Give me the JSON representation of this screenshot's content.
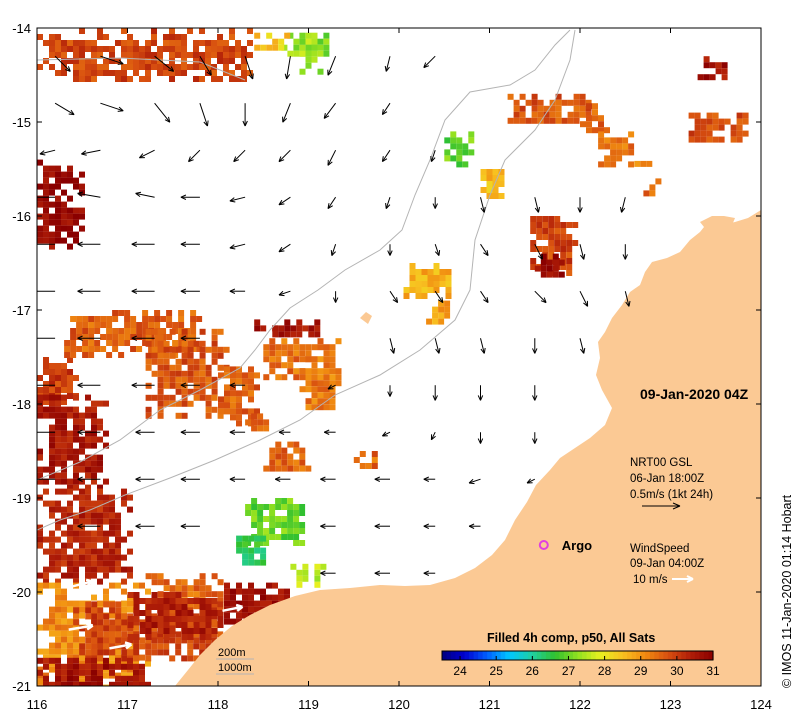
{
  "map": {
    "lon_range": [
      116,
      124
    ],
    "lat_range": [
      -21,
      -14
    ],
    "x_ticks": [
      {
        "value": 116,
        "label": "116"
      },
      {
        "value": 117,
        "label": "117"
      },
      {
        "value": 118,
        "label": "118"
      },
      {
        "value": 119,
        "label": "119"
      },
      {
        "value": 120,
        "label": "120"
      },
      {
        "value": 121,
        "label": "121"
      },
      {
        "value": 122,
        "label": "122"
      },
      {
        "value": 123,
        "label": "123"
      },
      {
        "value": 124,
        "label": "124"
      }
    ],
    "y_ticks": [
      {
        "value": -14,
        "label": "-14"
      },
      {
        "value": -15,
        "label": "-15"
      },
      {
        "value": -16,
        "label": "-16"
      },
      {
        "value": -17,
        "label": "-17"
      },
      {
        "value": -18,
        "label": "-18"
      },
      {
        "value": -19,
        "label": "-19"
      },
      {
        "value": -20,
        "label": "-20"
      },
      {
        "value": -21,
        "label": "-21"
      }
    ],
    "date_label": "09-Jan-2020 04Z",
    "currents_note": {
      "line1": "NRT00 GSL",
      "line2": "06-Jan 18:00Z",
      "line3": "0.5m/s (1kt 24h)"
    },
    "wind_note": {
      "line1": "WindSpeed",
      "line2": "09-Jan 04:00Z",
      "line3": "10 m/s"
    },
    "argo": {
      "label": "Argo",
      "lon": 121.6,
      "lat": -19.5,
      "color": "#e040e0"
    },
    "depth_legend": {
      "line1": "200m",
      "line2": "1000m"
    },
    "credit": "© IMOS 11-Jan-2020 01:14 Hobart",
    "land_color": "#fbc994",
    "contour_color": "#b4b4b4",
    "current_arrow_color": "#000000",
    "wind_arrow_color": "#ffffff"
  },
  "colorbar": {
    "title": "Filled 4h comp, p50, All Sats",
    "min": 23.5,
    "max": 31,
    "ticks": [
      {
        "value": 24,
        "label": "24"
      },
      {
        "value": 25,
        "label": "25"
      },
      {
        "value": 26,
        "label": "26"
      },
      {
        "value": 27,
        "label": "27"
      },
      {
        "value": 28,
        "label": "28"
      },
      {
        "value": 29,
        "label": "29"
      },
      {
        "value": 30,
        "label": "30"
      },
      {
        "value": 31,
        "label": "31"
      }
    ],
    "stops": [
      "#00007f",
      "#0000d0",
      "#0060ff",
      "#00c8ff",
      "#20d0a0",
      "#30c030",
      "#90e020",
      "#e8f020",
      "#f8c020",
      "#f08a10",
      "#d85010",
      "#b01e08",
      "#8a0000"
    ]
  },
  "sst_patches": [
    {
      "lon": 116.0,
      "lat": -14.0,
      "w": 2.35,
      "h": 0.55,
      "t": 29.9
    },
    {
      "lon": 116.0,
      "lat": -15.4,
      "w": 0.5,
      "h": 0.95,
      "t": 30.8
    },
    {
      "lon": 116.0,
      "lat": -17.5,
      "w": 0.45,
      "h": 0.5,
      "t": 30.0
    },
    {
      "lon": 116.0,
      "lat": -17.9,
      "w": 0.75,
      "h": 1.0,
      "t": 30.5
    },
    {
      "lon": 116.3,
      "lat": -17.0,
      "w": 1.5,
      "h": 0.5,
      "t": 29.6
    },
    {
      "lon": 117.2,
      "lat": -17.2,
      "w": 0.9,
      "h": 0.9,
      "t": 29.7
    },
    {
      "lon": 118.4,
      "lat": -17.1,
      "w": 0.25,
      "h": 0.12,
      "t": 30.7
    },
    {
      "lon": 118.6,
      "lat": -17.1,
      "w": 0.5,
      "h": 0.15,
      "t": 30.6
    },
    {
      "lon": 118.5,
      "lat": -17.3,
      "w": 0.5,
      "h": 0.4,
      "t": 29.4
    },
    {
      "lon": 118.9,
      "lat": -17.3,
      "w": 0.4,
      "h": 0.75,
      "t": 29.3
    },
    {
      "lon": 118.0,
      "lat": -17.6,
      "w": 0.4,
      "h": 0.6,
      "t": 29.6
    },
    {
      "lon": 118.5,
      "lat": -18.4,
      "w": 0.5,
      "h": 0.3,
      "t": 29.5
    },
    {
      "lon": 116.0,
      "lat": -18.9,
      "w": 1.0,
      "h": 1.0,
      "t": 30.3
    },
    {
      "lon": 116.0,
      "lat": -19.9,
      "w": 1.2,
      "h": 1.1,
      "t": 29.1
    },
    {
      "lon": 117.2,
      "lat": -19.8,
      "w": 0.8,
      "h": 0.7,
      "t": 29.5
    },
    {
      "lon": 116.4,
      "lat": -20.1,
      "w": 1.6,
      "h": 0.6,
      "t": 29.9
    },
    {
      "lon": 117.0,
      "lat": -20.0,
      "w": 1.0,
      "h": 0.5,
      "t": 30.4
    },
    {
      "lon": 118.0,
      "lat": -19.9,
      "w": 0.75,
      "h": 0.45,
      "t": 30.7
    },
    {
      "lon": 116.0,
      "lat": -20.7,
      "w": 1.2,
      "h": 0.3,
      "t": 30.6
    },
    {
      "lon": 118.3,
      "lat": -19.0,
      "w": 0.6,
      "h": 0.5,
      "t": 27.0
    },
    {
      "lon": 118.2,
      "lat": -19.4,
      "w": 0.3,
      "h": 0.3,
      "t": 26.5
    },
    {
      "lon": 118.8,
      "lat": -19.7,
      "w": 0.35,
      "h": 0.2,
      "t": 27.6
    },
    {
      "lon": 118.7,
      "lat": -14.05,
      "w": 0.5,
      "h": 0.25,
      "t": 27.2
    },
    {
      "lon": 118.9,
      "lat": -14.05,
      "w": 0.2,
      "h": 0.4,
      "t": 27.4
    },
    {
      "lon": 118.4,
      "lat": -14.05,
      "w": 0.35,
      "h": 0.15,
      "t": 28.4
    },
    {
      "lon": 120.5,
      "lat": -15.1,
      "w": 0.3,
      "h": 0.35,
      "t": 27.0
    },
    {
      "lon": 120.9,
      "lat": -15.5,
      "w": 0.25,
      "h": 0.3,
      "t": 28.6
    },
    {
      "lon": 120.05,
      "lat": -16.5,
      "w": 0.5,
      "h": 0.35,
      "t": 28.7
    },
    {
      "lon": 120.3,
      "lat": -16.9,
      "w": 0.25,
      "h": 0.2,
      "t": 28.9
    },
    {
      "lon": 121.2,
      "lat": -14.7,
      "w": 0.9,
      "h": 0.3,
      "t": 29.7
    },
    {
      "lon": 122.0,
      "lat": -14.8,
      "w": 0.3,
      "h": 0.3,
      "t": 29.6
    },
    {
      "lon": 122.2,
      "lat": -15.1,
      "w": 0.35,
      "h": 0.35,
      "t": 29.4
    },
    {
      "lon": 123.2,
      "lat": -14.9,
      "w": 0.6,
      "h": 0.3,
      "t": 29.8
    },
    {
      "lon": 123.3,
      "lat": -14.3,
      "w": 0.3,
      "h": 0.2,
      "t": 30.6
    },
    {
      "lon": 121.45,
      "lat": -16.0,
      "w": 0.5,
      "h": 0.6,
      "t": 29.9
    },
    {
      "lon": 121.5,
      "lat": -16.4,
      "w": 0.3,
      "h": 0.25,
      "t": 30.8
    },
    {
      "lon": 122.7,
      "lat": -15.6,
      "w": 0.15,
      "h": 0.15,
      "t": 29.6
    },
    {
      "lon": 122.6,
      "lat": -15.35,
      "w": 0.15,
      "h": 0.12,
      "t": 29.0
    },
    {
      "lon": 119.5,
      "lat": -18.5,
      "w": 0.25,
      "h": 0.2,
      "t": 29.5
    },
    {
      "lon": 118.3,
      "lat": -18.1,
      "w": 0.2,
      "h": 0.15,
      "t": 29.6
    }
  ],
  "currents": [
    {
      "lon": 116.2,
      "lat": -14.3,
      "u": 0.4,
      "v": -0.4
    },
    {
      "lon": 116.7,
      "lat": -14.3,
      "u": 0.6,
      "v": -0.2
    },
    {
      "lon": 117.3,
      "lat": -14.3,
      "u": 0.5,
      "v": -0.4
    },
    {
      "lon": 117.8,
      "lat": -14.3,
      "u": 0.3,
      "v": -0.5
    },
    {
      "lon": 118.3,
      "lat": -14.3,
      "u": 0.2,
      "v": -0.6
    },
    {
      "lon": 118.8,
      "lat": -14.3,
      "u": -0.1,
      "v": -0.6
    },
    {
      "lon": 119.3,
      "lat": -14.3,
      "u": -0.2,
      "v": -0.5
    },
    {
      "lon": 119.9,
      "lat": -14.3,
      "u": -0.1,
      "v": -0.4
    },
    {
      "lon": 120.4,
      "lat": -14.3,
      "u": -0.3,
      "v": -0.3
    },
    {
      "lon": 116.2,
      "lat": -14.8,
      "u": 0.5,
      "v": -0.3
    },
    {
      "lon": 116.7,
      "lat": -14.8,
      "u": 0.6,
      "v": -0.2
    },
    {
      "lon": 117.3,
      "lat": -14.8,
      "u": 0.4,
      "v": -0.5
    },
    {
      "lon": 117.8,
      "lat": -14.8,
      "u": 0.2,
      "v": -0.6
    },
    {
      "lon": 118.3,
      "lat": -14.8,
      "u": 0.0,
      "v": -0.6
    },
    {
      "lon": 118.8,
      "lat": -14.8,
      "u": -0.2,
      "v": -0.5
    },
    {
      "lon": 119.3,
      "lat": -14.8,
      "u": -0.3,
      "v": -0.4
    },
    {
      "lon": 119.9,
      "lat": -14.8,
      "u": -0.2,
      "v": -0.3
    },
    {
      "lon": 116.2,
      "lat": -15.3,
      "u": -0.4,
      "v": -0.1
    },
    {
      "lon": 116.7,
      "lat": -15.3,
      "u": -0.5,
      "v": -0.1
    },
    {
      "lon": 117.3,
      "lat": -15.3,
      "u": -0.4,
      "v": -0.2
    },
    {
      "lon": 117.8,
      "lat": -15.3,
      "u": -0.3,
      "v": -0.3
    },
    {
      "lon": 118.3,
      "lat": -15.3,
      "u": -0.3,
      "v": -0.3
    },
    {
      "lon": 118.8,
      "lat": -15.3,
      "u": -0.3,
      "v": -0.3
    },
    {
      "lon": 119.3,
      "lat": -15.3,
      "u": -0.2,
      "v": -0.4
    },
    {
      "lon": 119.9,
      "lat": -15.3,
      "u": -0.2,
      "v": -0.3
    },
    {
      "lon": 120.4,
      "lat": -15.3,
      "u": -0.1,
      "v": -0.3
    },
    {
      "lon": 116.2,
      "lat": -15.8,
      "u": -0.6,
      "v": 0.0
    },
    {
      "lon": 116.7,
      "lat": -15.8,
      "u": -0.6,
      "v": 0.1
    },
    {
      "lon": 117.3,
      "lat": -15.8,
      "u": -0.5,
      "v": 0.1
    },
    {
      "lon": 117.8,
      "lat": -15.8,
      "u": -0.5,
      "v": 0.0
    },
    {
      "lon": 118.3,
      "lat": -15.8,
      "u": -0.4,
      "v": -0.1
    },
    {
      "lon": 118.8,
      "lat": -15.8,
      "u": -0.3,
      "v": -0.2
    },
    {
      "lon": 119.3,
      "lat": -15.8,
      "u": -0.2,
      "v": -0.3
    },
    {
      "lon": 119.9,
      "lat": -15.8,
      "u": -0.1,
      "v": -0.3
    },
    {
      "lon": 120.4,
      "lat": -15.8,
      "u": 0.0,
      "v": -0.3
    },
    {
      "lon": 120.9,
      "lat": -15.8,
      "u": 0.1,
      "v": -0.4
    },
    {
      "lon": 121.5,
      "lat": -15.8,
      "u": 0.1,
      "v": -0.4
    },
    {
      "lon": 122.0,
      "lat": -15.8,
      "u": 0.0,
      "v": -0.4
    },
    {
      "lon": 122.5,
      "lat": -15.8,
      "u": -0.1,
      "v": -0.4
    },
    {
      "lon": 116.2,
      "lat": -16.3,
      "u": -0.6,
      "v": 0.0
    },
    {
      "lon": 116.7,
      "lat": -16.3,
      "u": -0.6,
      "v": 0.0
    },
    {
      "lon": 117.3,
      "lat": -16.3,
      "u": -0.6,
      "v": 0.0
    },
    {
      "lon": 117.8,
      "lat": -16.3,
      "u": -0.5,
      "v": 0.0
    },
    {
      "lon": 118.3,
      "lat": -16.3,
      "u": -0.4,
      "v": -0.1
    },
    {
      "lon": 118.8,
      "lat": -16.3,
      "u": -0.3,
      "v": -0.2
    },
    {
      "lon": 119.3,
      "lat": -16.3,
      "u": -0.1,
      "v": -0.3
    },
    {
      "lon": 119.9,
      "lat": -16.3,
      "u": 0.0,
      "v": -0.3
    },
    {
      "lon": 120.4,
      "lat": -16.3,
      "u": 0.1,
      "v": -0.3
    },
    {
      "lon": 120.9,
      "lat": -16.3,
      "u": 0.2,
      "v": -0.3
    },
    {
      "lon": 121.5,
      "lat": -16.3,
      "u": 0.2,
      "v": -0.4
    },
    {
      "lon": 122.0,
      "lat": -16.3,
      "u": 0.1,
      "v": -0.4
    },
    {
      "lon": 122.5,
      "lat": -16.3,
      "u": 0.0,
      "v": -0.4
    },
    {
      "lon": 116.2,
      "lat": -16.8,
      "u": -0.6,
      "v": 0.0
    },
    {
      "lon": 116.7,
      "lat": -16.8,
      "u": -0.6,
      "v": 0.0
    },
    {
      "lon": 117.3,
      "lat": -16.8,
      "u": -0.6,
      "v": 0.0
    },
    {
      "lon": 117.8,
      "lat": -16.8,
      "u": -0.5,
      "v": 0.0
    },
    {
      "lon": 118.3,
      "lat": -16.8,
      "u": -0.4,
      "v": 0.0
    },
    {
      "lon": 118.8,
      "lat": -16.8,
      "u": -0.3,
      "v": -0.1
    },
    {
      "lon": 119.3,
      "lat": -16.8,
      "u": 0.0,
      "v": -0.3
    },
    {
      "lon": 119.9,
      "lat": -16.8,
      "u": 0.2,
      "v": -0.3
    },
    {
      "lon": 120.4,
      "lat": -16.8,
      "u": 0.2,
      "v": -0.3
    },
    {
      "lon": 120.9,
      "lat": -16.8,
      "u": 0.2,
      "v": -0.3
    },
    {
      "lon": 121.5,
      "lat": -16.8,
      "u": 0.3,
      "v": -0.3
    },
    {
      "lon": 122.0,
      "lat": -16.8,
      "u": 0.2,
      "v": -0.4
    },
    {
      "lon": 122.5,
      "lat": -16.8,
      "u": 0.1,
      "v": -0.4
    },
    {
      "lon": 116.2,
      "lat": -17.3,
      "u": -0.6,
      "v": 0.0
    },
    {
      "lon": 116.7,
      "lat": -17.3,
      "u": -0.6,
      "v": 0.0
    },
    {
      "lon": 117.3,
      "lat": -17.3,
      "u": -0.6,
      "v": 0.0
    },
    {
      "lon": 117.8,
      "lat": -17.3,
      "u": -0.5,
      "v": 0.0
    },
    {
      "lon": 119.9,
      "lat": -17.3,
      "u": 0.1,
      "v": -0.4
    },
    {
      "lon": 120.4,
      "lat": -17.3,
      "u": 0.1,
      "v": -0.4
    },
    {
      "lon": 120.9,
      "lat": -17.3,
      "u": 0.1,
      "v": -0.4
    },
    {
      "lon": 121.5,
      "lat": -17.3,
      "u": 0.0,
      "v": -0.4
    },
    {
      "lon": 122.0,
      "lat": -17.3,
      "u": 0.1,
      "v": -0.4
    },
    {
      "lon": 116.2,
      "lat": -17.8,
      "u": -0.6,
      "v": 0.0
    },
    {
      "lon": 116.7,
      "lat": -17.8,
      "u": -0.6,
      "v": 0.0
    },
    {
      "lon": 117.3,
      "lat": -17.8,
      "u": -0.6,
      "v": 0.0
    },
    {
      "lon": 117.8,
      "lat": -17.8,
      "u": -0.5,
      "v": 0.0
    },
    {
      "lon": 118.3,
      "lat": -17.8,
      "u": -0.4,
      "v": 0.0
    },
    {
      "lon": 119.3,
      "lat": -17.8,
      "u": -0.2,
      "v": -0.1
    },
    {
      "lon": 119.9,
      "lat": -17.8,
      "u": 0.0,
      "v": -0.3
    },
    {
      "lon": 120.4,
      "lat": -17.8,
      "u": 0.0,
      "v": -0.4
    },
    {
      "lon": 120.9,
      "lat": -17.8,
      "u": 0.0,
      "v": -0.4
    },
    {
      "lon": 121.5,
      "lat": -17.8,
      "u": 0.0,
      "v": -0.4
    },
    {
      "lon": 116.2,
      "lat": -18.3,
      "u": -0.6,
      "v": 0.0
    },
    {
      "lon": 116.7,
      "lat": -18.3,
      "u": -0.6,
      "v": 0.0
    },
    {
      "lon": 117.3,
      "lat": -18.3,
      "u": -0.5,
      "v": 0.0
    },
    {
      "lon": 117.8,
      "lat": -18.3,
      "u": -0.5,
      "v": 0.0
    },
    {
      "lon": 118.3,
      "lat": -18.3,
      "u": -0.4,
      "v": 0.0
    },
    {
      "lon": 118.8,
      "lat": -18.3,
      "u": -0.3,
      "v": 0.0
    },
    {
      "lon": 119.3,
      "lat": -18.3,
      "u": -0.3,
      "v": 0.0
    },
    {
      "lon": 119.9,
      "lat": -18.3,
      "u": -0.2,
      "v": -0.1
    },
    {
      "lon": 120.4,
      "lat": -18.3,
      "u": -0.1,
      "v": -0.2
    },
    {
      "lon": 120.9,
      "lat": -18.3,
      "u": 0.0,
      "v": -0.3
    },
    {
      "lon": 121.5,
      "lat": -18.3,
      "u": 0.0,
      "v": -0.3
    },
    {
      "lon": 116.2,
      "lat": -18.8,
      "u": -0.6,
      "v": 0.0
    },
    {
      "lon": 116.7,
      "lat": -18.8,
      "u": -0.6,
      "v": 0.0
    },
    {
      "lon": 117.3,
      "lat": -18.8,
      "u": -0.5,
      "v": 0.0
    },
    {
      "lon": 117.8,
      "lat": -18.8,
      "u": -0.5,
      "v": 0.0
    },
    {
      "lon": 118.3,
      "lat": -18.8,
      "u": -0.4,
      "v": 0.0
    },
    {
      "lon": 118.8,
      "lat": -18.8,
      "u": -0.4,
      "v": 0.0
    },
    {
      "lon": 119.3,
      "lat": -18.8,
      "u": -0.4,
      "v": 0.0
    },
    {
      "lon": 119.9,
      "lat": -18.8,
      "u": -0.4,
      "v": 0.0
    },
    {
      "lon": 120.4,
      "lat": -18.8,
      "u": -0.3,
      "v": 0.0
    },
    {
      "lon": 120.9,
      "lat": -18.8,
      "u": -0.3,
      "v": -0.1
    },
    {
      "lon": 121.5,
      "lat": -18.8,
      "u": -0.2,
      "v": -0.1
    },
    {
      "lon": 116.7,
      "lat": -19.3,
      "u": -0.6,
      "v": 0.0
    },
    {
      "lon": 117.3,
      "lat": -19.3,
      "u": -0.5,
      "v": 0.0
    },
    {
      "lon": 117.8,
      "lat": -19.3,
      "u": -0.5,
      "v": 0.0
    },
    {
      "lon": 119.3,
      "lat": -19.3,
      "u": -0.4,
      "v": 0.0
    },
    {
      "lon": 119.9,
      "lat": -19.3,
      "u": -0.4,
      "v": 0.0
    },
    {
      "lon": 120.4,
      "lat": -19.3,
      "u": -0.3,
      "v": 0.0
    },
    {
      "lon": 120.9,
      "lat": -19.3,
      "u": -0.3,
      "v": 0.0
    },
    {
      "lon": 119.3,
      "lat": -19.8,
      "u": -0.4,
      "v": 0.0
    },
    {
      "lon": 119.9,
      "lat": -19.8,
      "u": -0.4,
      "v": 0.0
    },
    {
      "lon": 120.4,
      "lat": -19.8,
      "u": -0.3,
      "v": 0.0
    }
  ],
  "winds": [
    {
      "lon": 116.35,
      "lat": -19.95,
      "u": 0.6,
      "v": 0.15
    },
    {
      "lon": 117.1,
      "lat": -19.7,
      "u": 0.6,
      "v": 0.15
    },
    {
      "lon": 116.35,
      "lat": -20.4,
      "u": 0.6,
      "v": 0.1
    },
    {
      "lon": 116.8,
      "lat": -20.6,
      "u": 0.55,
      "v": 0.1
    },
    {
      "lon": 118.05,
      "lat": -20.2,
      "u": 0.5,
      "v": 0.1
    }
  ]
}
